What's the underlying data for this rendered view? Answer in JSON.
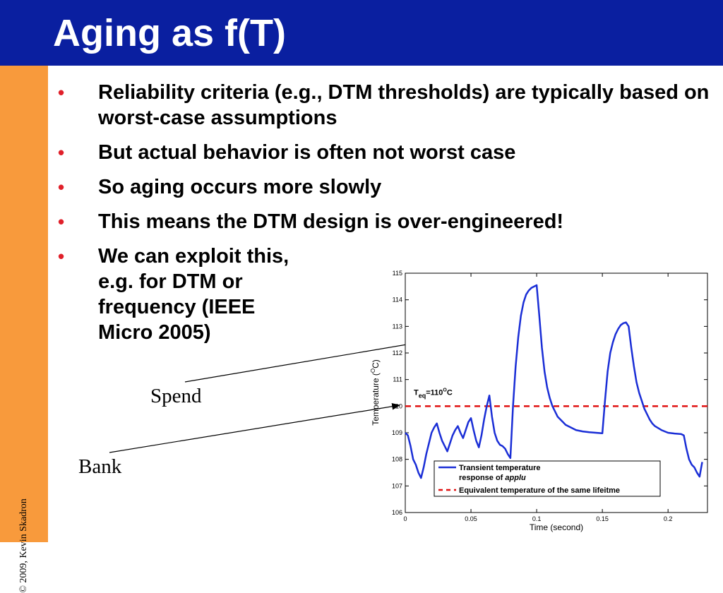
{
  "slide": {
    "title": "Aging as f(T)",
    "copyright": "© 2009, Kevin Skadron",
    "bullets": [
      {
        "text": "Reliability criteria (e.g., DTM thresholds) are typically based on worst-case assumptions"
      },
      {
        "text": "But actual behavior is often not worst case"
      },
      {
        "text": "So aging occurs more slowly"
      },
      {
        "text": "This means the DTM design is over-engineered!"
      },
      {
        "text": "We can exploit this, e.g. for DTM or frequency (IEEE Micro 2005)"
      }
    ],
    "bullet_color": "#e0202a",
    "annotations": {
      "spend": "Spend",
      "bank": "Bank"
    },
    "colors": {
      "header": "#0a1fa0",
      "sidebar": "#f89a3c"
    }
  },
  "chart_data": {
    "type": "line",
    "xlabel": "Time (second)",
    "ylabel_prefix": "Temperature (",
    "ylabel_unit": "C)",
    "ylabel_degree": "O",
    "xlim": [
      0,
      0.23
    ],
    "ylim": [
      106,
      115
    ],
    "xticks": [
      0,
      0.05,
      0.1,
      0.15,
      0.2
    ],
    "yticks": [
      106,
      107,
      108,
      109,
      110,
      111,
      112,
      113,
      114,
      115
    ],
    "grid": false,
    "legend_position": "bottom-right",
    "series": [
      {
        "name_line1": "Transient temperature",
        "name_line2a": "response of ",
        "name_line2b": "applu",
        "color": "#1a2ed6",
        "style": "solid",
        "x": [
          0,
          0.002,
          0.004,
          0.006,
          0.008,
          0.01,
          0.012,
          0.014,
          0.016,
          0.018,
          0.02,
          0.022,
          0.024,
          0.026,
          0.028,
          0.03,
          0.032,
          0.034,
          0.036,
          0.038,
          0.04,
          0.042,
          0.044,
          0.046,
          0.048,
          0.05,
          0.052,
          0.054,
          0.056,
          0.058,
          0.06,
          0.062,
          0.064,
          0.066,
          0.068,
          0.07,
          0.072,
          0.074,
          0.076,
          0.078,
          0.08,
          0.082,
          0.084,
          0.086,
          0.088,
          0.09,
          0.092,
          0.094,
          0.096,
          0.098,
          0.1,
          0.102,
          0.104,
          0.106,
          0.108,
          0.11,
          0.112,
          0.114,
          0.116,
          0.118,
          0.12,
          0.122,
          0.124,
          0.126,
          0.128,
          0.13,
          0.135,
          0.14,
          0.145,
          0.15,
          0.152,
          0.154,
          0.156,
          0.158,
          0.16,
          0.162,
          0.164,
          0.166,
          0.168,
          0.17,
          0.172,
          0.174,
          0.176,
          0.178,
          0.18,
          0.182,
          0.184,
          0.186,
          0.188,
          0.19,
          0.195,
          0.2,
          0.205,
          0.21,
          0.212,
          0.214,
          0.216,
          0.218,
          0.22,
          0.222,
          0.224,
          0.226
        ],
        "y": [
          109.0,
          108.9,
          108.5,
          108.0,
          107.8,
          107.5,
          107.3,
          107.7,
          108.2,
          108.6,
          109.0,
          109.2,
          109.35,
          109.0,
          108.7,
          108.5,
          108.3,
          108.6,
          108.9,
          109.1,
          109.25,
          109.0,
          108.8,
          109.1,
          109.4,
          109.55,
          109.1,
          108.7,
          108.45,
          108.9,
          109.5,
          110.0,
          110.4,
          109.6,
          109.0,
          108.7,
          108.55,
          108.5,
          108.4,
          108.2,
          108.05,
          110.0,
          111.5,
          112.6,
          113.4,
          113.9,
          114.2,
          114.35,
          114.45,
          114.5,
          114.55,
          113.4,
          112.2,
          111.3,
          110.7,
          110.3,
          110.0,
          109.8,
          109.6,
          109.5,
          109.4,
          109.3,
          109.25,
          109.2,
          109.15,
          109.1,
          109.05,
          109.02,
          109.0,
          108.98,
          110.2,
          111.3,
          112.0,
          112.4,
          112.7,
          112.9,
          113.05,
          113.12,
          113.15,
          113.0,
          112.2,
          111.5,
          110.9,
          110.5,
          110.2,
          109.9,
          109.7,
          109.5,
          109.35,
          109.25,
          109.1,
          109.0,
          108.97,
          108.95,
          108.9,
          108.4,
          108.0,
          107.8,
          107.7,
          107.5,
          107.35,
          107.9
        ]
      },
      {
        "name": "Equivalent temperature of the same lifeitme",
        "color": "#e01010",
        "style": "dashed",
        "x": [
          0,
          0.23
        ],
        "y": [
          110,
          110
        ]
      }
    ],
    "annotation": {
      "text": "=110",
      "symbol": "T",
      "subscript": "eq",
      "degree": "O",
      "unit": "C"
    }
  }
}
